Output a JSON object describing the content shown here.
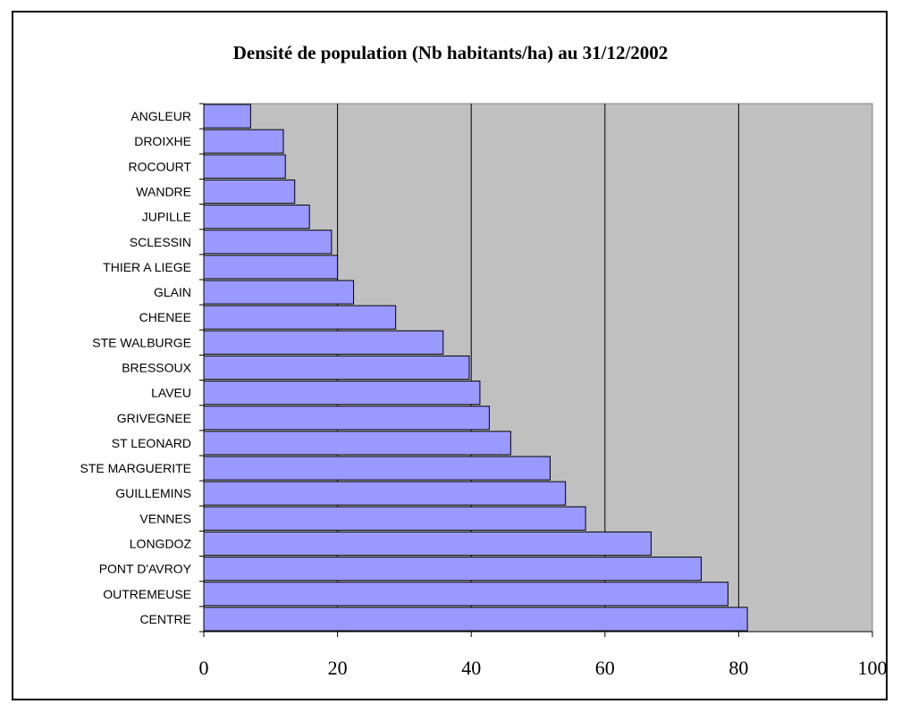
{
  "chart_data": {
    "type": "bar",
    "orientation": "horizontal",
    "title": "Densité de population (Nb habitants/ha) au 31/12/2002",
    "categories": [
      "ANGLEUR",
      "DROIXHE",
      "ROCOURT",
      "WANDRE",
      "JUPILLE",
      "SCLESSIN",
      "THIER A LIEGE",
      "GLAIN",
      "CHENEE",
      "STE WALBURGE",
      "BRESSOUX",
      "LAVEU",
      "GRIVEGNEE",
      "ST LEONARD",
      "STE MARGUERITE",
      "GUILLEMINS",
      "VENNES",
      "LONGDOZ",
      "PONT D'AVROY",
      "OUTREMEUSE",
      "CENTRE"
    ],
    "values": [
      7,
      11.9,
      12.2,
      13.6,
      15.8,
      19.1,
      20,
      22.4,
      28.7,
      35.8,
      39.7,
      41.3,
      42.7,
      45.9,
      51.8,
      54.1,
      57.1,
      66.9,
      74.4,
      78.4,
      81.3
    ],
    "xlim": [
      0,
      100
    ],
    "xticks": [
      "0",
      "20",
      "40",
      "60",
      "80",
      "100"
    ],
    "grid": "vertical",
    "plot_background": "#c0c0c0",
    "bar_color": "#9999ff",
    "bar_edge_color": "#000000"
  }
}
